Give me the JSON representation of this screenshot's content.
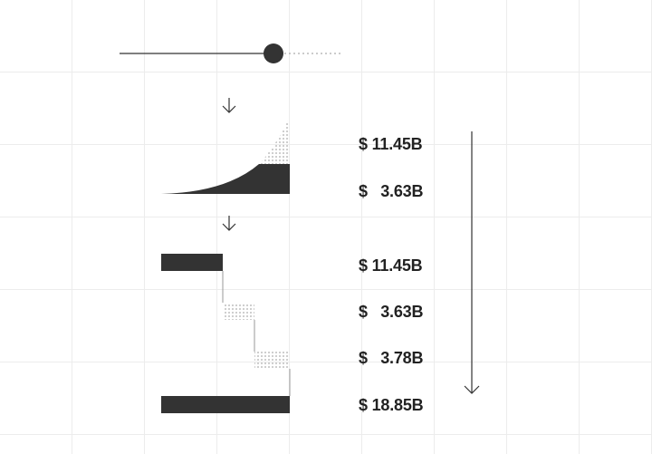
{
  "colors": {
    "ink": "#333333",
    "grid": "#ececec",
    "background": "#ffffff"
  },
  "slider": {
    "value_fraction": 0.71
  },
  "growth_section": {
    "values": [
      "$ 11.45B",
      "$   3.63B"
    ]
  },
  "waterfall": {
    "values": [
      "$ 11.45B",
      "$   3.63B",
      "$   3.78B",
      "$ 18.85B"
    ],
    "steps": [
      11.45,
      3.63,
      3.78,
      18.85
    ]
  },
  "icons": {
    "step_down_1": "arrow-down-icon",
    "step_down_2": "arrow-down-icon",
    "total_arrow": "long-arrow-down-icon"
  }
}
